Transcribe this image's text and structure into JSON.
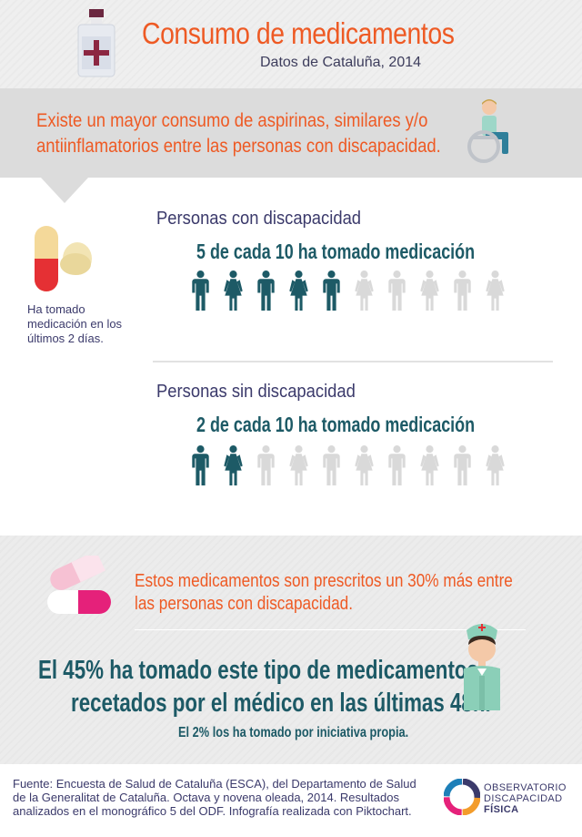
{
  "header": {
    "title": "Consumo de medicamentos",
    "subtitle": "Datos de Cataluña, 2014"
  },
  "intro": {
    "line1": "Existe un mayor consumo de aspirinas, similares y/o",
    "line2": "antiinflamatorios entre las personas con discapacidad."
  },
  "pill_note": "Ha tomado medicación en los últimos 2 días.",
  "groups": [
    {
      "title": "Personas con discapacidad",
      "stat": "5 de cada 10 ha tomado medicación",
      "filled": 5,
      "total": 10
    },
    {
      "title": "Personas sin discapacidad",
      "stat": "2 de cada 10 ha tomado medicación",
      "filled": 2,
      "total": 10
    }
  ],
  "prescribed": {
    "line1": "Estos medicamentos son prescritos un 30% más entre",
    "line2": "las personas con discapacidad."
  },
  "highlight": {
    "line1": "El 45% ha tomado este tipo de medicamentos",
    "line2": "recetados por el médico en las últimas 48h.",
    "note": "El 2% los ha tomado por iniciativa propia."
  },
  "footer": {
    "source": "Fuente: Encuesta de Salud de Cataluña (ESCA), del Departamento de Salud de la Generalitat de Cataluña. Octava y novena oleada, 2014. Resultados analizados en el monográfico 5 del ODF. Infografía realizada con Piktochart.",
    "logo_line1": "OBSERVATORIO",
    "logo_line2": "DISCAPACIDAD",
    "logo_line3": "FÍSICA"
  },
  "colors": {
    "accent_orange": "#ee5a24",
    "filled_person": "#1d5a66",
    "empty_person": "#d9d9d9",
    "heading_purple": "#3b3a6b"
  },
  "icons": [
    "medicine-bottle-icon",
    "wheelchair-person-icon",
    "pills-icon",
    "capsule-icon",
    "nurse-icon",
    "man-icon",
    "woman-icon"
  ]
}
